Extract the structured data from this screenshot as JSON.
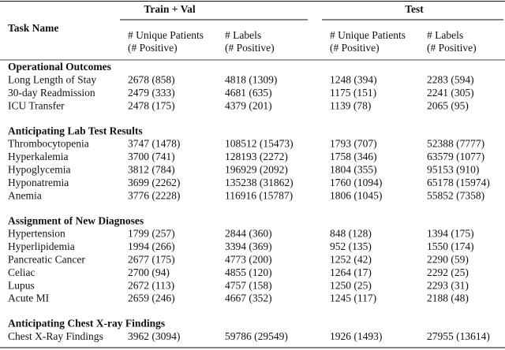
{
  "header": {
    "task_name": "Task Name",
    "groups": [
      "Train + Val",
      "Test"
    ],
    "columns": [
      [
        "# Unique Patients",
        "(# Positive)"
      ],
      [
        "# Labels",
        "(# Positive)"
      ],
      [
        "# Unique Patients",
        "(# Positive)"
      ],
      [
        "# Labels",
        "(# Positive)"
      ]
    ]
  },
  "sections": [
    {
      "title": "Operational Outcomes",
      "rows": [
        [
          "Long Length of Stay",
          "2678 (858)",
          "4818 (1309)",
          "1248 (394)",
          "2283 (594)"
        ],
        [
          "30-day Readmission",
          "2479 (333)",
          "4681 (635)",
          "1175 (151)",
          "2241 (305)"
        ],
        [
          "ICU Transfer",
          "2478 (175)",
          "4379 (201)",
          "1139 (78)",
          "2065 (95)"
        ]
      ]
    },
    {
      "title": "Anticipating Lab Test Results",
      "rows": [
        [
          "Thrombocytopenia",
          "3747 (1478)",
          "108512 (15473)",
          "1793 (707)",
          "52388 (7777)"
        ],
        [
          "Hyperkalemia",
          "3700 (741)",
          "128193 (2272)",
          "1758 (346)",
          "63579 (1077)"
        ],
        [
          "Hypoglycemia",
          "3812 (784)",
          "196929 (2092)",
          "1804 (355)",
          "95153 (910)"
        ],
        [
          "Hyponatremia",
          "3699 (2262)",
          "135238 (31862)",
          "1760 (1094)",
          "65178 (15974)"
        ],
        [
          "Anemia",
          "3776 (2228)",
          "116916 (15787)",
          "1806 (1045)",
          "55852 (7358)"
        ]
      ]
    },
    {
      "title": "Assignment of New Diagnoses",
      "rows": [
        [
          "Hypertension",
          "1799 (257)",
          "2844 (360)",
          "848 (128)",
          "1394 (175)"
        ],
        [
          "Hyperlipidemia",
          "1994 (266)",
          "3394 (369)",
          "952 (135)",
          "1550 (174)"
        ],
        [
          "Pancreatic Cancer",
          "2677 (175)",
          "4773 (200)",
          "1252 (42)",
          "2290 (59)"
        ],
        [
          "Celiac",
          "2700 (94)",
          "4855 (120)",
          "1264 (17)",
          "2292 (25)"
        ],
        [
          "Lupus",
          "2672 (113)",
          "4757 (158)",
          "1250 (25)",
          "2293 (31)"
        ],
        [
          "Acute MI",
          "2659 (246)",
          "4667 (352)",
          "1245 (117)",
          "2188 (48)"
        ]
      ]
    },
    {
      "title": "Anticipating Chest X-ray Findings",
      "rows": [
        [
          "Chest X-Ray Findings",
          "3962 (3094)",
          "59786 (29549)",
          "1926 (1493)",
          "27955 (13614)"
        ]
      ]
    }
  ]
}
